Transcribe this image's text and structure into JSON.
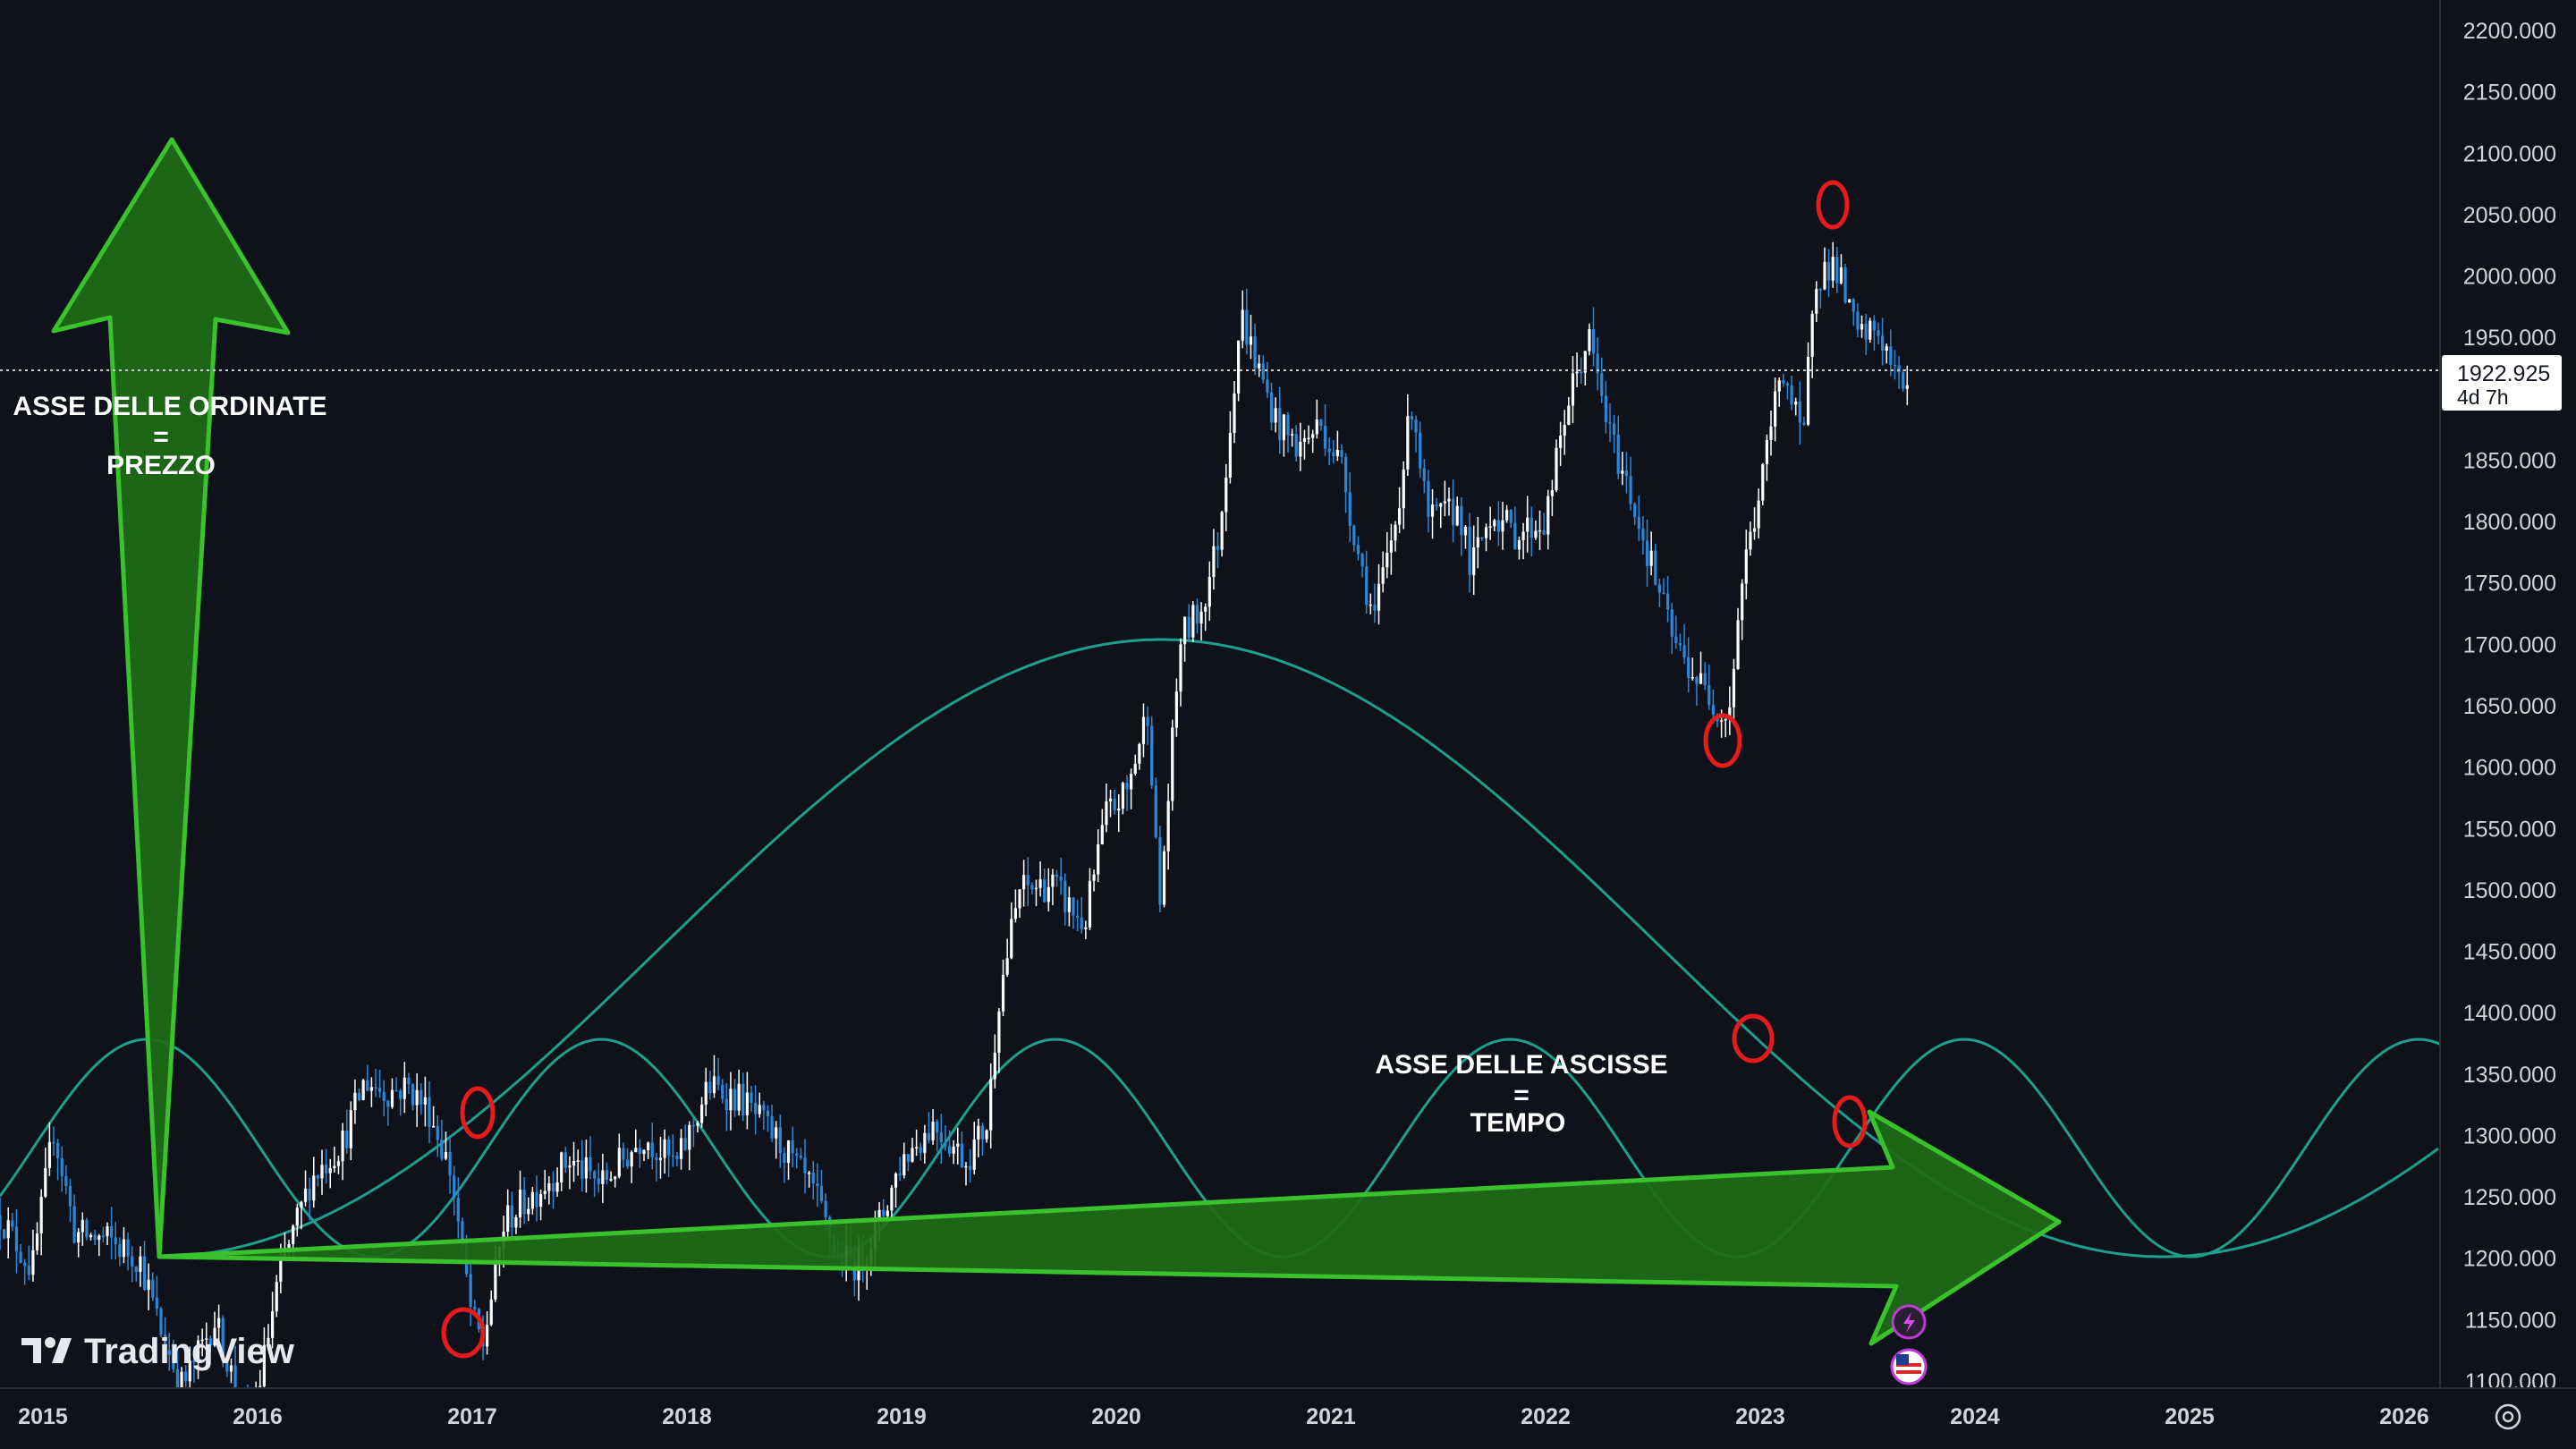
{
  "chart_data": {
    "type": "candlestick",
    "watermark": "TradingView",
    "y_axis": {
      "ticks": [
        "2200.000",
        "2150.000",
        "2100.000",
        "2050.000",
        "2000.000",
        "1950.000",
        "1900.000",
        "1850.000",
        "1800.000",
        "1750.000",
        "1700.000",
        "1650.000",
        "1600.000",
        "1550.000",
        "1500.000",
        "1450.000",
        "1400.000",
        "1350.000",
        "1300.000",
        "1250.000",
        "1200.000",
        "1150.000",
        "1100.000"
      ],
      "ylim": [
        1090,
        2220
      ]
    },
    "x_axis": {
      "ticks": [
        "2015",
        "2016",
        "2017",
        "2018",
        "2019",
        "2020",
        "2021",
        "2022",
        "2023",
        "2024",
        "2025",
        "2026"
      ],
      "xlim": [
        2014.8,
        2026.15
      ]
    },
    "last_price": {
      "value": "1922.925",
      "countdown": "4d 7h"
    },
    "price_path": [
      [
        2014.8,
        1235
      ],
      [
        2014.95,
        1190
      ],
      [
        2015.05,
        1305
      ],
      [
        2015.15,
        1220
      ],
      [
        2015.3,
        1215
      ],
      [
        2015.45,
        1200
      ],
      [
        2015.55,
        1140
      ],
      [
        2015.65,
        1095
      ],
      [
        2015.8,
        1150
      ],
      [
        2015.95,
        1065
      ],
      [
        2016.0,
        1090
      ],
      [
        2016.1,
        1185
      ],
      [
        2016.25,
        1265
      ],
      [
        2016.4,
        1295
      ],
      [
        2016.5,
        1345
      ],
      [
        2016.6,
        1335
      ],
      [
        2016.7,
        1340
      ],
      [
        2016.8,
        1320
      ],
      [
        2016.9,
        1270
      ],
      [
        2017.0,
        1150
      ],
      [
        2017.05,
        1130
      ],
      [
        2017.15,
        1230
      ],
      [
        2017.3,
        1255
      ],
      [
        2017.45,
        1280
      ],
      [
        2017.6,
        1260
      ],
      [
        2017.8,
        1300
      ],
      [
        2017.95,
        1275
      ],
      [
        2018.1,
        1340
      ],
      [
        2018.25,
        1330
      ],
      [
        2018.35,
        1310
      ],
      [
        2018.45,
        1290
      ],
      [
        2018.6,
        1250
      ],
      [
        2018.7,
        1200
      ],
      [
        2018.8,
        1195
      ],
      [
        2018.9,
        1230
      ],
      [
        2019.0,
        1280
      ],
      [
        2019.15,
        1310
      ],
      [
        2019.3,
        1280
      ],
      [
        2019.4,
        1310
      ],
      [
        2019.45,
        1410
      ],
      [
        2019.55,
        1500
      ],
      [
        2019.7,
        1505
      ],
      [
        2019.85,
        1470
      ],
      [
        2019.95,
        1560
      ],
      [
        2020.05,
        1580
      ],
      [
        2020.15,
        1650
      ],
      [
        2020.2,
        1480
      ],
      [
        2020.3,
        1705
      ],
      [
        2020.4,
        1730
      ],
      [
        2020.48,
        1790
      ],
      [
        2020.58,
        1970
      ],
      [
        2020.65,
        1930
      ],
      [
        2020.75,
        1880
      ],
      [
        2020.85,
        1860
      ],
      [
        2020.95,
        1880
      ],
      [
        2021.05,
        1845
      ],
      [
        2021.12,
        1780
      ],
      [
        2021.2,
        1720
      ],
      [
        2021.3,
        1800
      ],
      [
        2021.38,
        1900
      ],
      [
        2021.45,
        1800
      ],
      [
        2021.6,
        1810
      ],
      [
        2021.65,
        1760
      ],
      [
        2021.75,
        1810
      ],
      [
        2021.85,
        1790
      ],
      [
        2022.0,
        1800
      ],
      [
        2022.1,
        1895
      ],
      [
        2022.2,
        1950
      ],
      [
        2022.3,
        1870
      ],
      [
        2022.4,
        1820
      ],
      [
        2022.5,
        1760
      ],
      [
        2022.6,
        1700
      ],
      [
        2022.75,
        1660
      ],
      [
        2022.85,
        1640
      ],
      [
        2022.92,
        1760
      ],
      [
        2023.0,
        1825
      ],
      [
        2023.1,
        1930
      ],
      [
        2023.2,
        1860
      ],
      [
        2023.25,
        2000
      ],
      [
        2023.35,
        2010
      ],
      [
        2023.45,
        1950
      ],
      [
        2023.55,
        1955
      ],
      [
        2023.65,
        1910
      ],
      [
        2023.7,
        1920
      ]
    ]
  },
  "annotations": {
    "y_axis_label": [
      "ASSE DELLE ORDINATE",
      "=",
      "PREZZO"
    ],
    "x_axis_label": [
      "ASSE DELLE ASCISSE",
      "=",
      "TEMPO"
    ]
  },
  "colors": {
    "background": "#0f121b",
    "axis_text": "#d1d4dc",
    "candle_up": "#ffffff",
    "candle_down": "#2b88d8",
    "cycle_line": "#1e9e8c",
    "arrow_fill": "#1f6e17",
    "arrow_stroke": "#39c22c",
    "circle_marker": "#e61b1b"
  },
  "icons": [
    "lightning-event-icon",
    "us-flag-event-icon",
    "settings-icon"
  ]
}
